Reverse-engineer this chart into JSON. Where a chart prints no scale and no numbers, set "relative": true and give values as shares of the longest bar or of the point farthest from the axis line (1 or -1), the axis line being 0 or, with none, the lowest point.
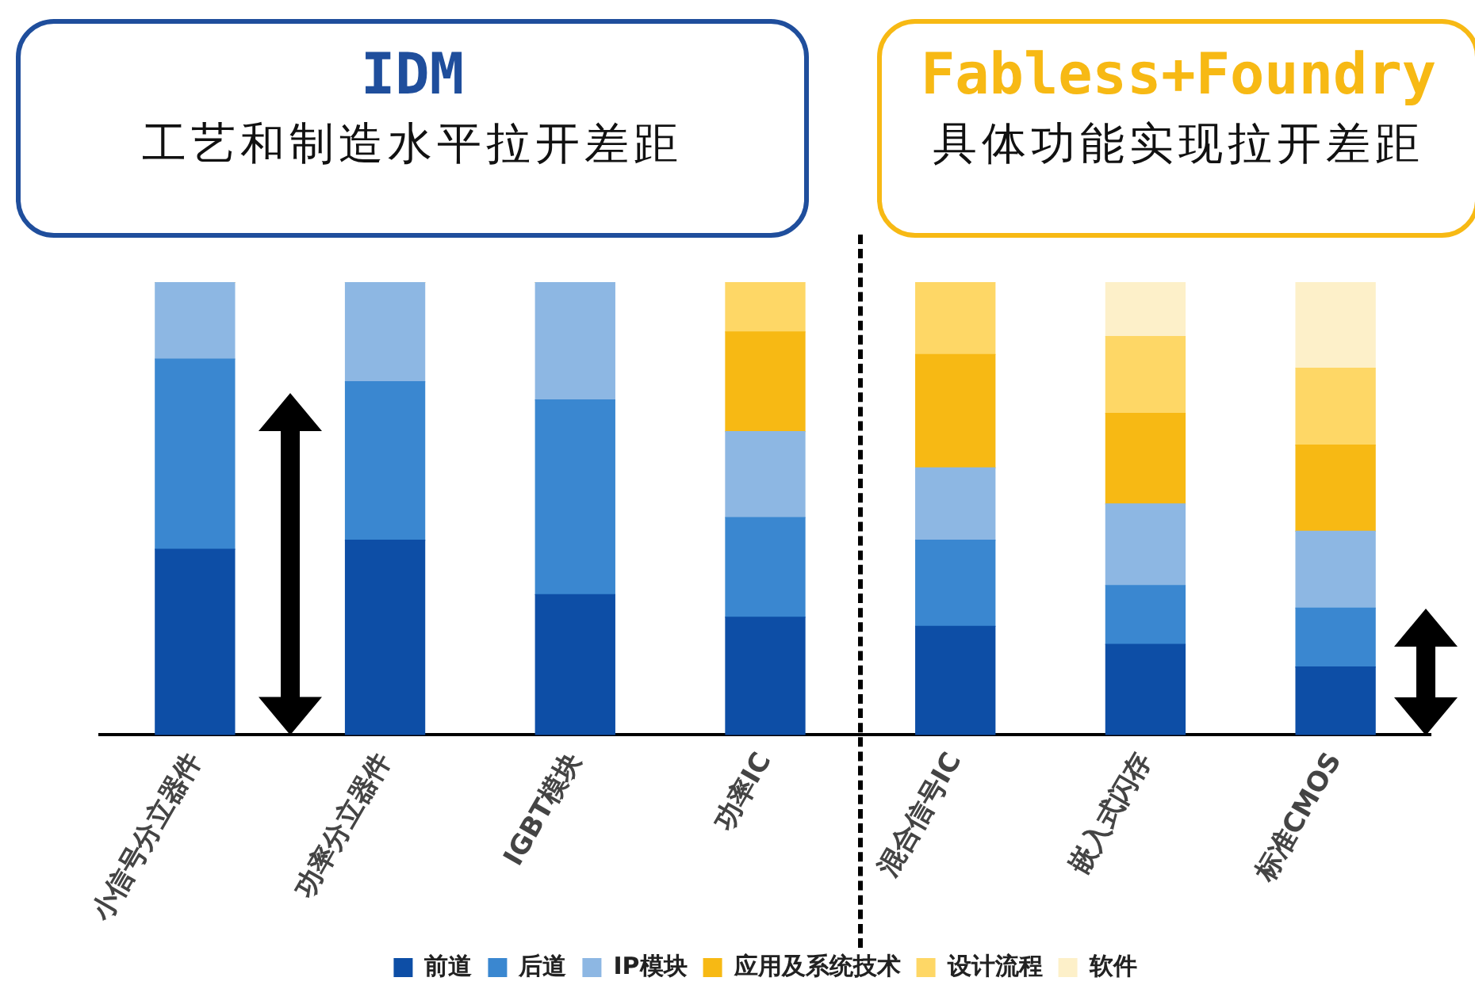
{
  "chart_data": {
    "type": "bar",
    "stacked": true,
    "relative": true,
    "legend": "bottom",
    "grid": false,
    "categories": [
      "小信号分立器件",
      "功率分立器件",
      "IGBT模块",
      "功率IC",
      "混合信号IC",
      "嵌入式闪存",
      "标准CMOS"
    ],
    "series": [
      {
        "name": "前道",
        "color": "#0d4ea6",
        "values": [
          0.41,
          0.43,
          0.31,
          0.26,
          0.24,
          0.2,
          0.15
        ]
      },
      {
        "name": "后道",
        "color": "#3a87d0",
        "values": [
          0.42,
          0.35,
          0.43,
          0.22,
          0.19,
          0.13,
          0.13
        ]
      },
      {
        "name": "IP模块",
        "color": "#8db7e3",
        "values": [
          0.17,
          0.22,
          0.26,
          0.19,
          0.16,
          0.18,
          0.17
        ]
      },
      {
        "name": "应用及系统技术",
        "color": "#f7b914",
        "values": [
          0,
          0,
          0,
          0.22,
          0.25,
          0.2,
          0.19
        ]
      },
      {
        "name": "设计流程",
        "color": "#fed766",
        "values": [
          0,
          0,
          0,
          0.11,
          0.16,
          0.17,
          0.17
        ]
      },
      {
        "name": "软件",
        "color": "#fdf0c9",
        "values": [
          0,
          0,
          0,
          0,
          0,
          0.12,
          0.19
        ]
      }
    ],
    "annotations": [
      "IDM",
      "工艺和制造水平拉开差距",
      "Fabless+Foundry",
      "具体功能实现拉开差距"
    ]
  }
}
